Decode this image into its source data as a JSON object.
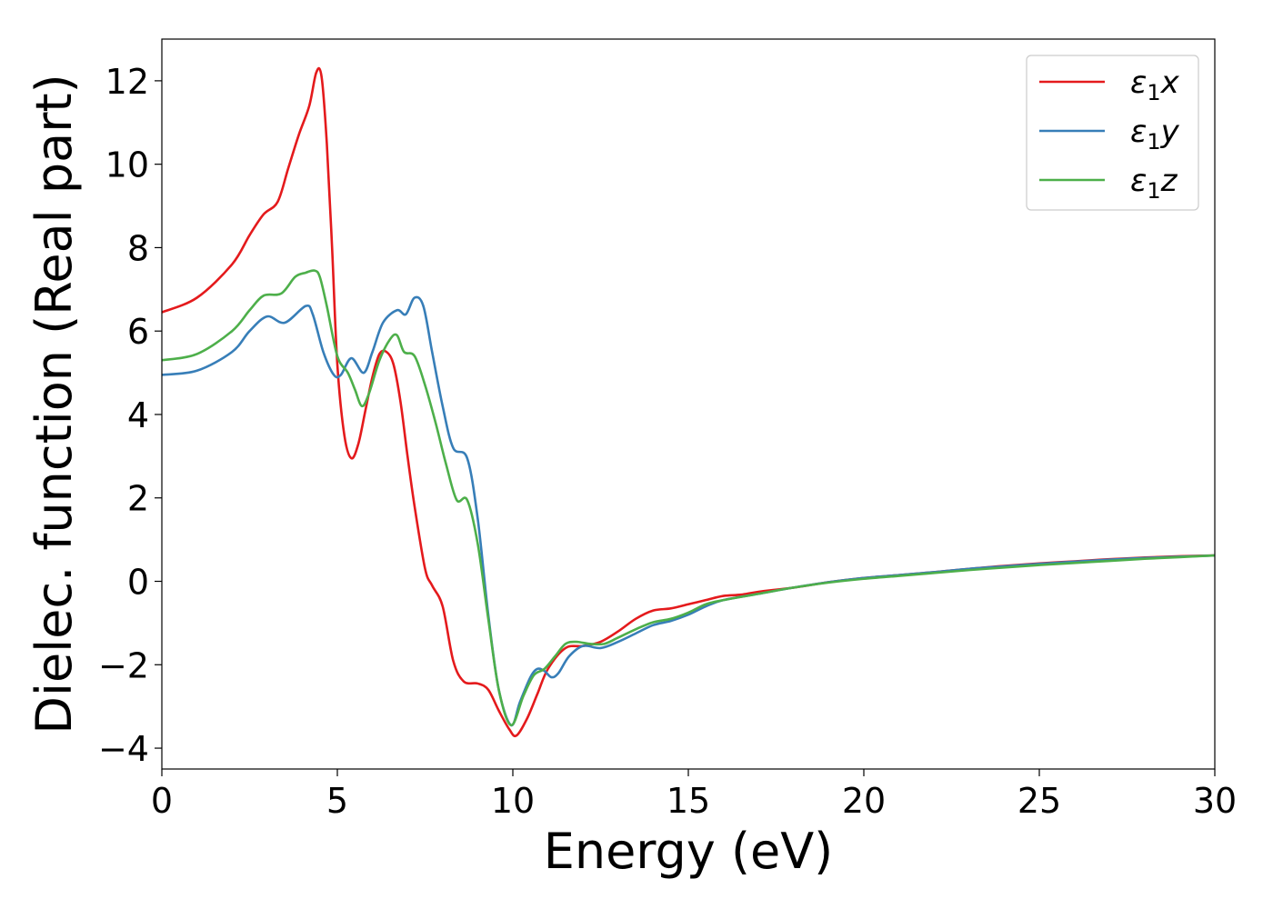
{
  "chart_data": {
    "type": "line",
    "xlabel": "Energy (eV)",
    "ylabel": "Dielec. function (Real part)",
    "xlim": [
      0,
      30
    ],
    "ylim": [
      -4.5,
      13
    ],
    "xticks": [
      0,
      5,
      10,
      15,
      20,
      25,
      30
    ],
    "yticks": [
      -4,
      -2,
      0,
      2,
      4,
      6,
      8,
      10,
      12
    ],
    "xtick_labels": [
      "0",
      "5",
      "10",
      "15",
      "20",
      "25",
      "30"
    ],
    "ytick_labels": [
      "−4",
      "−2",
      "0",
      "2",
      "4",
      "6",
      "8",
      "10",
      "12"
    ],
    "grid": false,
    "legend_position": "top-right",
    "series": [
      {
        "name": "ε₁x",
        "legend_symbol": "ε",
        "legend_sub": "1",
        "legend_var": "x",
        "color": "#e41a1c",
        "x": [
          0,
          1,
          2,
          2.5,
          2.9,
          3.3,
          3.6,
          3.9,
          4.2,
          4.4,
          4.55,
          4.7,
          4.85,
          5.0,
          5.2,
          5.4,
          5.6,
          5.8,
          6.0,
          6.2,
          6.4,
          6.6,
          6.8,
          7.0,
          7.2,
          7.5,
          7.7,
          8.0,
          8.3,
          8.6,
          9.0,
          9.3,
          9.6,
          9.9,
          10.1,
          10.4,
          10.7,
          11.0,
          11.5,
          12.0,
          12.5,
          13.0,
          13.5,
          14.0,
          14.5,
          15.0,
          15.5,
          16.0,
          16.5,
          17.0,
          18.0,
          19.0,
          20.0,
          21.0,
          22.0,
          23.0,
          24.0,
          25.0,
          26.0,
          27.0,
          28.0,
          29.0,
          30.0
        ],
        "values": [
          6.45,
          6.8,
          7.6,
          8.3,
          8.8,
          9.1,
          9.9,
          10.7,
          11.4,
          12.2,
          12.1,
          10.5,
          8.0,
          5.2,
          3.5,
          2.95,
          3.3,
          4.1,
          4.9,
          5.45,
          5.5,
          5.2,
          4.3,
          3.0,
          1.8,
          0.3,
          -0.1,
          -0.6,
          -1.9,
          -2.4,
          -2.45,
          -2.6,
          -3.1,
          -3.55,
          -3.7,
          -3.3,
          -2.7,
          -2.1,
          -1.6,
          -1.55,
          -1.45,
          -1.2,
          -0.9,
          -0.7,
          -0.65,
          -0.55,
          -0.45,
          -0.35,
          -0.32,
          -0.25,
          -0.15,
          -0.02,
          0.08,
          0.15,
          0.22,
          0.3,
          0.37,
          0.43,
          0.48,
          0.53,
          0.57,
          0.6,
          0.62
        ]
      },
      {
        "name": "ε₁y",
        "legend_symbol": "ε",
        "legend_sub": "1",
        "legend_var": "y",
        "color": "#377eb8",
        "x": [
          0,
          1,
          2,
          2.5,
          3.0,
          3.5,
          4.1,
          4.3,
          4.6,
          4.9,
          5.1,
          5.4,
          5.75,
          6.0,
          6.3,
          6.7,
          6.95,
          7.2,
          7.45,
          7.7,
          8.0,
          8.3,
          8.7,
          9.0,
          9.3,
          9.6,
          9.95,
          10.2,
          10.5,
          10.7,
          10.9,
          11.1,
          11.3,
          11.6,
          12.0,
          12.5,
          13.0,
          13.5,
          14.0,
          14.5,
          15.0,
          15.5,
          16.0,
          17.0,
          18.0,
          19.0,
          20.0,
          21.0,
          22.0,
          23.0,
          24.0,
          25.0,
          26.0,
          27.0,
          28.0,
          29.0,
          30.0
        ],
        "values": [
          4.95,
          5.05,
          5.5,
          6.0,
          6.35,
          6.2,
          6.6,
          6.4,
          5.5,
          4.95,
          4.95,
          5.35,
          5.0,
          5.5,
          6.2,
          6.5,
          6.4,
          6.8,
          6.6,
          5.5,
          4.2,
          3.2,
          2.95,
          1.5,
          -0.8,
          -2.6,
          -3.45,
          -2.9,
          -2.3,
          -2.1,
          -2.15,
          -2.3,
          -2.2,
          -1.8,
          -1.55,
          -1.6,
          -1.45,
          -1.25,
          -1.05,
          -0.95,
          -0.8,
          -0.6,
          -0.45,
          -0.3,
          -0.15,
          -0.02,
          0.08,
          0.15,
          0.22,
          0.3,
          0.36,
          0.42,
          0.47,
          0.52,
          0.56,
          0.59,
          0.62
        ]
      },
      {
        "name": "ε₁z",
        "legend_symbol": "ε",
        "legend_sub": "1",
        "legend_var": "z",
        "color": "#4daf4a",
        "x": [
          0,
          1,
          2,
          2.5,
          2.9,
          3.4,
          3.8,
          4.1,
          4.35,
          4.5,
          4.7,
          5.0,
          5.3,
          5.5,
          5.7,
          5.9,
          6.2,
          6.5,
          6.7,
          6.9,
          7.2,
          7.5,
          7.8,
          8.1,
          8.4,
          8.7,
          9.0,
          9.3,
          9.6,
          9.95,
          10.3,
          10.6,
          10.9,
          11.2,
          11.5,
          11.8,
          12.2,
          12.6,
          13.0,
          13.5,
          14.0,
          14.5,
          15.0,
          15.5,
          16.0,
          17.0,
          18.0,
          19.0,
          20.0,
          21.0,
          22.0,
          23.0,
          24.0,
          25.0,
          26.0,
          27.0,
          28.0,
          29.0,
          30.0
        ],
        "values": [
          5.3,
          5.45,
          6.0,
          6.5,
          6.85,
          6.9,
          7.3,
          7.4,
          7.45,
          7.3,
          6.6,
          5.4,
          5.0,
          4.6,
          4.2,
          4.5,
          5.3,
          5.8,
          5.9,
          5.5,
          5.4,
          4.7,
          3.8,
          2.8,
          1.95,
          1.95,
          0.9,
          -0.9,
          -2.6,
          -3.45,
          -2.75,
          -2.25,
          -2.1,
          -1.8,
          -1.5,
          -1.45,
          -1.5,
          -1.5,
          -1.35,
          -1.15,
          -0.98,
          -0.9,
          -0.75,
          -0.55,
          -0.45,
          -0.3,
          -0.15,
          -0.03,
          0.06,
          0.13,
          0.2,
          0.27,
          0.33,
          0.39,
          0.44,
          0.49,
          0.54,
          0.58,
          0.62
        ]
      }
    ]
  }
}
